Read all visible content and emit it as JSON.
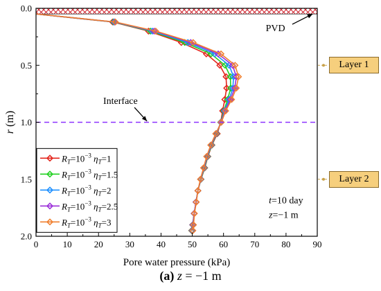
{
  "caption": {
    "letter": "(a)",
    "var": "z",
    "rest": " = −1 m"
  },
  "side_labels": [
    {
      "text": "Layer 1",
      "r": 0.5
    },
    {
      "text": "Layer 2",
      "r": 1.5
    }
  ],
  "chart_data": {
    "type": "line",
    "xlabel": "Pore water pressure  (kPa)",
    "ylabel_var": "r",
    "ylabel_unit": " (m)",
    "xlim": [
      0,
      90
    ],
    "ylim": [
      0,
      2
    ],
    "xticks": [
      0,
      10,
      20,
      30,
      40,
      50,
      60,
      70,
      80,
      90
    ],
    "yticks": [
      0.0,
      0.5,
      1.0,
      1.5,
      2.0
    ],
    "y_inverted": true,
    "annotations": {
      "pvd": {
        "text": "PVD",
        "r_extent": [
          0,
          0.05
        ]
      },
      "interface": {
        "text": "Interface",
        "r": 1.0,
        "color": "#8c32ff"
      },
      "time": {
        "var": "t",
        "rest": "=10 day"
      },
      "depth": {
        "var": "z",
        "rest": "=−1 m"
      }
    },
    "legend_position": "lower-left",
    "series": [
      {
        "name": "R_T=10^−3  η_T=1",
        "rt_base": "R",
        "rt_sub": "T",
        "rt_rest": "=10",
        "rt_exp": "−3",
        "eta_base": "η",
        "eta_sub": "T",
        "eta_val": "=1",
        "color": "#e3241b",
        "r": [
          0.05,
          0.12,
          0.2,
          0.3,
          0.4,
          0.5,
          0.6,
          0.7,
          0.8,
          0.9,
          1.0,
          1.1,
          1.2,
          1.3,
          1.4,
          1.5,
          1.6,
          1.7,
          1.8,
          1.9,
          1.95
        ],
        "p": [
          0,
          24.5,
          36.0,
          46.5,
          54.5,
          58.8,
          60.8,
          61.0,
          60.4,
          59.7,
          59.1,
          58.0,
          56.3,
          55.0,
          54.0,
          52.8,
          51.8,
          51.2,
          50.6,
          50.1,
          49.8
        ]
      },
      {
        "name": "R_T=10^−3  η_T=1.5",
        "rt_base": "R",
        "rt_sub": "T",
        "rt_rest": "=10",
        "rt_exp": "−3",
        "eta_base": "η",
        "eta_sub": "T",
        "eta_val": "=1.5",
        "color": "#21d021",
        "r": [
          0.05,
          0.12,
          0.2,
          0.3,
          0.4,
          0.5,
          0.6,
          0.7,
          0.8,
          0.9,
          1.0,
          1.1,
          1.2,
          1.3,
          1.4,
          1.5,
          1.6,
          1.7,
          1.8,
          1.9,
          1.95
        ],
        "p": [
          0,
          24.8,
          36.6,
          47.6,
          56.0,
          60.5,
          62.2,
          62.3,
          61.3,
          60.1,
          59.1,
          57.8,
          56.2,
          54.9,
          53.9,
          52.8,
          51.8,
          51.2,
          50.6,
          50.2,
          49.9
        ]
      },
      {
        "name": "R_T=10^−3  η_T=2",
        "rt_base": "R",
        "rt_sub": "T",
        "rt_rest": "=10",
        "rt_exp": "−3",
        "eta_base": "η",
        "eta_sub": "T",
        "eta_val": "=2",
        "color": "#1e90ff",
        "r": [
          0.05,
          0.12,
          0.2,
          0.3,
          0.4,
          0.5,
          0.6,
          0.7,
          0.8,
          0.9,
          1.0,
          1.1,
          1.2,
          1.3,
          1.4,
          1.5,
          1.6,
          1.7,
          1.8,
          1.9,
          1.95
        ],
        "p": [
          0,
          25.0,
          37.2,
          48.6,
          57.2,
          61.8,
          63.2,
          63.0,
          61.8,
          60.3,
          59.2,
          57.7,
          56.1,
          54.8,
          53.8,
          52.7,
          51.8,
          51.2,
          50.6,
          50.2,
          50.0
        ]
      },
      {
        "name": "R_T=10^−3  η_T=2.5",
        "rt_base": "R",
        "rt_sub": "T",
        "rt_rest": "=10",
        "rt_exp": "−3",
        "eta_base": "η",
        "eta_sub": "T",
        "eta_val": "=2.5",
        "color": "#9b30d9",
        "r": [
          0.05,
          0.12,
          0.2,
          0.3,
          0.4,
          0.5,
          0.6,
          0.7,
          0.8,
          0.9,
          1.0,
          1.1,
          1.2,
          1.3,
          1.4,
          1.5,
          1.6,
          1.7,
          1.8,
          1.9,
          1.95
        ],
        "p": [
          0,
          25.2,
          37.8,
          49.5,
          58.3,
          62.9,
          64.1,
          63.6,
          62.2,
          60.5,
          59.2,
          57.6,
          56.0,
          54.7,
          53.7,
          52.7,
          51.8,
          51.2,
          50.6,
          50.3,
          50.1
        ]
      },
      {
        "name": "R_T=10^−3  η_T=3",
        "rt_base": "R",
        "rt_sub": "T",
        "rt_rest": "=10",
        "rt_exp": "−3",
        "eta_base": "η",
        "eta_sub": "T",
        "eta_val": "=3",
        "color": "#f07f2e",
        "r": [
          0.05,
          0.12,
          0.2,
          0.3,
          0.4,
          0.5,
          0.6,
          0.7,
          0.8,
          0.9,
          1.0,
          1.1,
          1.2,
          1.3,
          1.4,
          1.5,
          1.6,
          1.7,
          1.8,
          1.9,
          1.95
        ],
        "p": [
          0,
          25.4,
          38.3,
          50.3,
          59.2,
          63.7,
          64.8,
          64.1,
          62.6,
          60.7,
          59.3,
          57.5,
          55.9,
          54.6,
          53.6,
          52.6,
          51.8,
          51.3,
          50.7,
          50.4,
          50.2
        ]
      }
    ]
  }
}
